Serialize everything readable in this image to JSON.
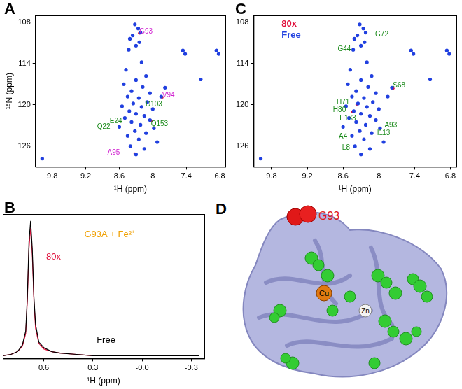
{
  "chart_data": [
    {
      "type": "scatter",
      "title": "A",
      "x_label": "¹H (ppm)",
      "y_label": "¹⁵N (ppm)",
      "xlim": [
        10.1,
        6.7
      ],
      "xticks": [
        9.8,
        9.2,
        8.6,
        8.0,
        7.4,
        6.8
      ],
      "ylim": [
        129,
        107
      ],
      "yticks": [
        108,
        114,
        120,
        126
      ],
      "grid": false,
      "series": [
        {
          "color": "#2040e0",
          "values": [
            [
              9.98,
              127.8
            ],
            [
              8.32,
              108.3
            ],
            [
              8.26,
              108.9
            ],
            [
              8.22,
              109.5
            ],
            [
              8.36,
              109.9
            ],
            [
              8.41,
              110.4
            ],
            [
              8.24,
              110.9
            ],
            [
              8.3,
              111.4
            ],
            [
              8.43,
              112.0
            ],
            [
              7.46,
              112.1
            ],
            [
              7.42,
              112.6
            ],
            [
              6.86,
              112.1
            ],
            [
              6.82,
              112.6
            ],
            [
              8.2,
              113.8
            ],
            [
              8.48,
              114.9
            ],
            [
              8.12,
              115.8
            ],
            [
              7.14,
              116.3
            ],
            [
              8.3,
              116.4
            ],
            [
              8.52,
              117.0
            ],
            [
              8.18,
              117.4
            ],
            [
              7.78,
              117.5
            ],
            [
              8.38,
              118.0
            ],
            [
              8.05,
              118.3
            ],
            [
              8.45,
              118.8
            ],
            [
              8.25,
              119.0
            ],
            [
              7.85,
              118.8
            ],
            [
              8.1,
              119.6
            ],
            [
              8.35,
              119.8
            ],
            [
              8.55,
              120.2
            ],
            [
              8.2,
              120.3
            ],
            [
              8.0,
              120.6
            ],
            [
              8.42,
              120.9
            ],
            [
              8.3,
              121.3
            ],
            [
              8.15,
              121.6
            ],
            [
              8.5,
              121.9
            ],
            [
              8.05,
              122.2
            ],
            [
              8.38,
              122.5
            ],
            [
              8.22,
              122.9
            ],
            [
              8.6,
              123.2
            ],
            [
              7.98,
              123.4
            ],
            [
              8.32,
              123.8
            ],
            [
              8.12,
              124.1
            ],
            [
              8.45,
              124.5
            ],
            [
              8.25,
              125.0
            ],
            [
              7.92,
              125.4
            ],
            [
              8.4,
              126.0
            ],
            [
              8.15,
              126.4
            ],
            [
              8.3,
              127.2
            ]
          ]
        },
        {
          "color": "#e0103c",
          "values": [
            [
              9.98,
              127.8
            ],
            [
              8.32,
              108.3
            ],
            [
              8.26,
              108.9
            ],
            [
              8.24,
              109.6
            ],
            [
              8.36,
              109.9
            ],
            [
              8.41,
              110.4
            ],
            [
              8.24,
              110.9
            ],
            [
              8.3,
              111.4
            ],
            [
              8.43,
              112.0
            ],
            [
              7.46,
              112.1
            ],
            [
              7.42,
              112.6
            ],
            [
              6.86,
              112.1
            ],
            [
              6.82,
              112.6
            ],
            [
              8.2,
              113.8
            ],
            [
              8.48,
              114.9
            ],
            [
              8.12,
              115.8
            ],
            [
              7.14,
              116.3
            ],
            [
              8.3,
              116.4
            ],
            [
              8.52,
              117.0
            ],
            [
              8.18,
              117.4
            ],
            [
              7.78,
              117.5
            ],
            [
              8.38,
              118.0
            ],
            [
              8.05,
              118.3
            ],
            [
              8.45,
              118.8
            ],
            [
              8.25,
              119.0
            ],
            [
              7.83,
              118.9
            ],
            [
              8.1,
              119.6
            ],
            [
              8.35,
              119.8
            ],
            [
              8.55,
              120.2
            ],
            [
              8.2,
              120.3
            ],
            [
              8.0,
              120.6
            ],
            [
              8.42,
              120.9
            ],
            [
              8.3,
              121.3
            ],
            [
              8.15,
              121.6
            ],
            [
              8.5,
              121.9
            ],
            [
              8.03,
              122.3
            ],
            [
              8.38,
              122.5
            ],
            [
              8.22,
              122.9
            ],
            [
              8.6,
              123.2
            ],
            [
              7.98,
              123.4
            ],
            [
              8.32,
              123.8
            ],
            [
              8.12,
              124.1
            ],
            [
              8.45,
              124.5
            ],
            [
              8.25,
              125.0
            ],
            [
              7.92,
              125.4
            ],
            [
              8.4,
              126.0
            ],
            [
              8.15,
              126.4
            ],
            [
              8.32,
              127.1
            ]
          ]
        }
      ],
      "annotations": [
        {
          "text": "G93",
          "x": 8.12,
          "y": 109.4,
          "color": "#d020d0"
        },
        {
          "text": "D103",
          "x": 7.98,
          "y": 119.9,
          "color": "#1a8a1a"
        },
        {
          "text": "V94",
          "x": 7.72,
          "y": 118.6,
          "color": "#d020d0"
        },
        {
          "text": "E24",
          "x": 8.66,
          "y": 122.4,
          "color": "#1a8a1a"
        },
        {
          "text": "Q22",
          "x": 8.88,
          "y": 123.2,
          "color": "#1a8a1a"
        },
        {
          "text": "Q153",
          "x": 7.88,
          "y": 122.8,
          "color": "#1a8a1a"
        },
        {
          "text": "A95",
          "x": 8.7,
          "y": 127.0,
          "color": "#d020d0"
        }
      ]
    },
    {
      "type": "scatter",
      "title": "C",
      "x_label": "¹H (ppm)",
      "xlim": [
        10.1,
        6.7
      ],
      "xticks": [
        9.8,
        9.2,
        8.6,
        8.0,
        7.4,
        6.8
      ],
      "ylim": [
        129,
        107
      ],
      "yticks": [
        108,
        114,
        120,
        126
      ],
      "grid": false,
      "legend": "upper left",
      "series": [
        {
          "name": "Free",
          "color": "#2040e0",
          "values": [
            [
              9.98,
              127.8
            ],
            [
              8.32,
              108.3
            ],
            [
              8.26,
              108.9
            ],
            [
              8.22,
              109.5
            ],
            [
              8.36,
              109.9
            ],
            [
              8.41,
              110.4
            ],
            [
              8.24,
              110.9
            ],
            [
              8.3,
              111.4
            ],
            [
              8.43,
              112.0
            ],
            [
              7.46,
              112.1
            ],
            [
              7.42,
              112.6
            ],
            [
              6.86,
              112.1
            ],
            [
              6.82,
              112.6
            ],
            [
              8.2,
              113.8
            ],
            [
              8.48,
              114.9
            ],
            [
              8.12,
              115.8
            ],
            [
              7.14,
              116.3
            ],
            [
              8.3,
              116.4
            ],
            [
              8.52,
              117.0
            ],
            [
              8.18,
              117.4
            ],
            [
              7.78,
              117.5
            ],
            [
              8.38,
              118.0
            ],
            [
              8.05,
              118.3
            ],
            [
              8.45,
              118.8
            ],
            [
              8.25,
              119.0
            ],
            [
              7.85,
              118.8
            ],
            [
              8.1,
              119.6
            ],
            [
              8.35,
              119.8
            ],
            [
              8.55,
              120.2
            ],
            [
              8.2,
              120.3
            ],
            [
              8.0,
              120.6
            ],
            [
              8.42,
              120.9
            ],
            [
              8.3,
              121.3
            ],
            [
              8.15,
              121.6
            ],
            [
              8.5,
              121.9
            ],
            [
              8.05,
              122.2
            ],
            [
              8.38,
              122.5
            ],
            [
              8.22,
              122.9
            ],
            [
              8.6,
              123.2
            ],
            [
              7.98,
              123.4
            ],
            [
              8.32,
              123.8
            ],
            [
              8.12,
              124.1
            ],
            [
              8.45,
              124.5
            ],
            [
              8.25,
              125.0
            ],
            [
              7.92,
              125.4
            ],
            [
              8.4,
              126.0
            ],
            [
              8.15,
              126.4
            ],
            [
              8.3,
              127.2
            ]
          ]
        },
        {
          "name": "80x",
          "color": "#e0103c",
          "values": [
            [
              9.98,
              127.8
            ],
            [
              8.32,
              108.3
            ],
            [
              8.26,
              108.9
            ],
            [
              8.22,
              109.5
            ],
            [
              8.36,
              109.9
            ],
            [
              8.41,
              110.4
            ],
            [
              8.24,
              110.9
            ],
            [
              8.3,
              111.4
            ],
            [
              8.43,
              112.0
            ],
            [
              7.46,
              112.1
            ],
            [
              7.42,
              112.6
            ],
            [
              6.86,
              112.1
            ],
            [
              6.82,
              112.6
            ],
            [
              8.2,
              113.8
            ],
            [
              8.48,
              114.9
            ],
            [
              8.12,
              115.8
            ],
            [
              7.14,
              116.3
            ],
            [
              8.3,
              116.4
            ],
            [
              8.52,
              117.0
            ],
            [
              8.18,
              117.4
            ],
            [
              7.76,
              117.6
            ],
            [
              8.38,
              118.0
            ],
            [
              8.05,
              118.3
            ],
            [
              8.45,
              118.8
            ],
            [
              8.25,
              119.0
            ],
            [
              7.85,
              118.8
            ],
            [
              8.1,
              119.6
            ],
            [
              8.37,
              119.9
            ],
            [
              8.55,
              120.2
            ],
            [
              8.2,
              120.3
            ],
            [
              8.0,
              120.6
            ],
            [
              8.44,
              121.0
            ],
            [
              8.3,
              121.3
            ],
            [
              8.15,
              121.6
            ],
            [
              8.5,
              121.9
            ],
            [
              8.05,
              122.2
            ],
            [
              8.38,
              122.5
            ],
            [
              8.22,
              122.9
            ],
            [
              8.6,
              123.2
            ],
            [
              7.98,
              123.4
            ],
            [
              8.32,
              123.8
            ],
            [
              8.12,
              124.1
            ],
            [
              8.45,
              124.5
            ],
            [
              8.25,
              125.0
            ],
            [
              7.92,
              125.4
            ],
            [
              8.4,
              126.0
            ],
            [
              8.15,
              126.4
            ],
            [
              8.3,
              127.2
            ]
          ]
        }
      ],
      "annotations": [
        {
          "text": "G44",
          "x": 8.58,
          "y": 111.9,
          "color": "#1a8a1a"
        },
        {
          "text": "G72",
          "x": 7.95,
          "y": 109.8,
          "color": "#1a8a1a"
        },
        {
          "text": "S68",
          "x": 7.66,
          "y": 117.2,
          "color": "#1a8a1a"
        },
        {
          "text": "H71",
          "x": 8.6,
          "y": 119.6,
          "color": "#1a8a1a"
        },
        {
          "text": "H80",
          "x": 8.66,
          "y": 120.8,
          "color": "#1a8a1a"
        },
        {
          "text": "E133",
          "x": 8.52,
          "y": 122.0,
          "color": "#1a8a1a"
        },
        {
          "text": "A93",
          "x": 7.8,
          "y": 123.0,
          "color": "#1a8a1a"
        },
        {
          "text": "I113",
          "x": 7.92,
          "y": 124.1,
          "color": "#1a8a1a"
        },
        {
          "text": "A4",
          "x": 8.6,
          "y": 124.6,
          "color": "#1a8a1a"
        },
        {
          "text": "L8",
          "x": 8.55,
          "y": 126.2,
          "color": "#1a8a1a"
        }
      ]
    },
    {
      "type": "line",
      "title": "B",
      "x_label": "¹H (ppm)",
      "xlim": [
        0.85,
        -0.38
      ],
      "xticks": [
        0.6,
        0.3,
        {
          "value": 0,
          "label": "-0.0"
        },
        -0.3
      ],
      "ylim": [
        0,
        1.05
      ],
      "grid": false,
      "tick_labels": "x",
      "x": [
        0.85,
        0.8,
        0.76,
        0.73,
        0.71,
        0.7,
        0.69,
        0.68,
        0.67,
        0.66,
        0.65,
        0.63,
        0.6,
        0.55,
        0.5,
        0.4,
        0.3,
        0.2,
        0.1,
        0.0,
        -0.1,
        -0.2,
        -0.3,
        -0.35
      ],
      "series": [
        {
          "color": "#000000",
          "values": [
            0.02,
            0.03,
            0.05,
            0.1,
            0.2,
            0.45,
            0.85,
            1.0,
            0.8,
            0.45,
            0.25,
            0.12,
            0.08,
            0.05,
            0.04,
            0.03,
            0.02,
            0.02,
            0.02,
            0.02,
            0.02,
            0.02,
            0.02,
            0.02
          ]
        },
        {
          "color": "#e0103c",
          "values": [
            0.02,
            0.03,
            0.05,
            0.09,
            0.18,
            0.42,
            0.8,
            0.95,
            0.76,
            0.42,
            0.22,
            0.11,
            0.07,
            0.05,
            0.04,
            0.03,
            0.02,
            0.02,
            0.02,
            0.02,
            0.02,
            0.02,
            0.02,
            0.02
          ]
        }
      ],
      "annotations": [
        {
          "text": "80x",
          "x": 0.54,
          "y": 0.74,
          "color": "#e0103c"
        },
        {
          "text": "G93A + Fe²⁺",
          "x": 0.2,
          "y": 0.9,
          "color": "#f0a000"
        },
        {
          "text": "Free",
          "x": 0.22,
          "y": 0.13,
          "color": "#000000"
        }
      ]
    }
  ],
  "structure": {
    "title": "D",
    "labels": [
      {
        "text": "G93",
        "color": "#e01818"
      },
      {
        "text": "Cu",
        "color": "#000000"
      },
      {
        "text": "Zn",
        "color": "#000000"
      }
    ]
  }
}
